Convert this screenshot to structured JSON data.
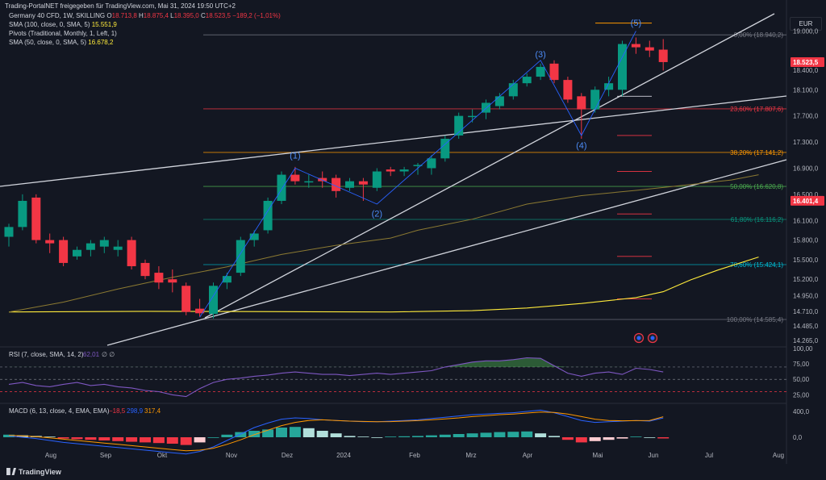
{
  "header": {
    "publisher_note": "Trading-PortalNET freigegeben für TradingView.com, Mai 31, 2024 19:50 UTC+2",
    "symbol": "Germany 40 CFD, 1W, SKILLING",
    "ohlc": {
      "o_label": "O",
      "o": "18.713,8",
      "h_label": "H",
      "h": "18.875,4",
      "l_label": "L",
      "l": "18.395,0",
      "c_label": "C",
      "c": "18.523,5",
      "chg": "−189,2 (−1,01%)"
    },
    "sma100": {
      "label": "SMA (100, close, 0, SMA, 5)",
      "value": "15.551,9"
    },
    "pivots": {
      "label": "Pivots (Traditional, Monthly, 1, Left, 1)"
    },
    "sma50": {
      "label": "SMA (50, close, 0, SMA, 5)",
      "value": "16.678,2"
    },
    "currency": "EUR"
  },
  "brand": "TradingView",
  "chart_data": [
    {
      "type": "candlestick",
      "title": "Germany 40 CFD, 1W, SKILLING",
      "price_axis": {
        "ticks": [
          19000,
          18400,
          18100,
          17700,
          17300,
          16900,
          16500,
          16100,
          15800,
          15500,
          15200,
          14950,
          14710,
          14485,
          14265
        ],
        "labels": [
          "19.000,0",
          "18.400,0",
          "18.100,0",
          "17.700,0",
          "17.300,0",
          "16.900,0",
          "16.500,0",
          "16.100,0",
          "15.800,0",
          "15.500,0",
          "15.200,0",
          "14.950,0",
          "14.710,0",
          "14.485,0",
          "14.265,0"
        ],
        "ylim": [
          14190,
          19350
        ]
      },
      "time_axis": [
        "Aug",
        "Sep",
        "Okt",
        "Nov",
        "Dez",
        "2024",
        "Feb",
        "Mrz",
        "Apr",
        "Mai",
        "Jun",
        "Jul",
        "Aug"
      ],
      "price_badges": [
        {
          "value": 18523.5,
          "label": "18.523,5",
          "color": "#f23645"
        },
        {
          "value": 16401.4,
          "label": "16.401,4",
          "color": "#f23645"
        }
      ],
      "candles": [
        {
          "o": 15850,
          "h": 16050,
          "l": 15700,
          "c": 16000
        },
        {
          "o": 16000,
          "h": 16500,
          "l": 15950,
          "c": 16400
        },
        {
          "o": 16450,
          "h": 16500,
          "l": 15750,
          "c": 15800
        },
        {
          "o": 15800,
          "h": 15900,
          "l": 15600,
          "c": 15750
        },
        {
          "o": 15800,
          "h": 15850,
          "l": 15400,
          "c": 15450
        },
        {
          "o": 15550,
          "h": 15700,
          "l": 15500,
          "c": 15650
        },
        {
          "o": 15650,
          "h": 15800,
          "l": 15550,
          "c": 15750
        },
        {
          "o": 15700,
          "h": 15850,
          "l": 15600,
          "c": 15800
        },
        {
          "o": 15650,
          "h": 15800,
          "l": 15550,
          "c": 15700
        },
        {
          "o": 15800,
          "h": 15850,
          "l": 15350,
          "c": 15400
        },
        {
          "o": 15450,
          "h": 15500,
          "l": 15200,
          "c": 15250
        },
        {
          "o": 15300,
          "h": 15400,
          "l": 15050,
          "c": 15150
        },
        {
          "o": 15200,
          "h": 15350,
          "l": 15000,
          "c": 15150
        },
        {
          "o": 15100,
          "h": 15150,
          "l": 14650,
          "c": 14700
        },
        {
          "o": 14750,
          "h": 14900,
          "l": 14630,
          "c": 14680
        },
        {
          "o": 14670,
          "h": 15150,
          "l": 14600,
          "c": 15100
        },
        {
          "o": 15150,
          "h": 15300,
          "l": 15050,
          "c": 15250
        },
        {
          "o": 15300,
          "h": 15850,
          "l": 15250,
          "c": 15800
        },
        {
          "o": 15800,
          "h": 15950,
          "l": 15700,
          "c": 15900
        },
        {
          "o": 15950,
          "h": 16450,
          "l": 15900,
          "c": 16400
        },
        {
          "o": 16400,
          "h": 16850,
          "l": 16350,
          "c": 16800
        },
        {
          "o": 16800,
          "h": 16920,
          "l": 16650,
          "c": 16700
        },
        {
          "o": 16700,
          "h": 16800,
          "l": 16600,
          "c": 16700
        },
        {
          "o": 16750,
          "h": 16850,
          "l": 16600,
          "c": 16700
        },
        {
          "o": 16750,
          "h": 16800,
          "l": 16450,
          "c": 16550
        },
        {
          "o": 16600,
          "h": 16750,
          "l": 16550,
          "c": 16700
        },
        {
          "o": 16700,
          "h": 16750,
          "l": 16400,
          "c": 16650
        },
        {
          "o": 16600,
          "h": 16900,
          "l": 16550,
          "c": 16850
        },
        {
          "o": 16880,
          "h": 16920,
          "l": 16780,
          "c": 16850
        },
        {
          "o": 16850,
          "h": 16920,
          "l": 16780,
          "c": 16880
        },
        {
          "o": 16950,
          "h": 16980,
          "l": 16800,
          "c": 16950
        },
        {
          "o": 16900,
          "h": 17100,
          "l": 16800,
          "c": 17050
        },
        {
          "o": 17050,
          "h": 17400,
          "l": 17000,
          "c": 17350
        },
        {
          "o": 17400,
          "h": 17750,
          "l": 17350,
          "c": 17700
        },
        {
          "o": 17700,
          "h": 17800,
          "l": 17600,
          "c": 17700
        },
        {
          "o": 17750,
          "h": 17950,
          "l": 17650,
          "c": 17900
        },
        {
          "o": 17850,
          "h": 18050,
          "l": 17800,
          "c": 18000
        },
        {
          "o": 18000,
          "h": 18250,
          "l": 17950,
          "c": 18200
        },
        {
          "o": 18200,
          "h": 18350,
          "l": 18150,
          "c": 18300
        },
        {
          "o": 18300,
          "h": 18500,
          "l": 18250,
          "c": 18450
        },
        {
          "o": 18500,
          "h": 18550,
          "l": 18200,
          "c": 18250
        },
        {
          "o": 18250,
          "h": 18300,
          "l": 17900,
          "c": 17950
        },
        {
          "o": 18000,
          "h": 18050,
          "l": 17350,
          "c": 17800
        },
        {
          "o": 17800,
          "h": 18150,
          "l": 17750,
          "c": 18100
        },
        {
          "o": 18100,
          "h": 18300,
          "l": 18000,
          "c": 18200
        },
        {
          "o": 18100,
          "h": 18850,
          "l": 18000,
          "c": 18800
        },
        {
          "o": 18800,
          "h": 18900,
          "l": 18650,
          "c": 18750
        },
        {
          "o": 18750,
          "h": 18850,
          "l": 18600,
          "c": 18700
        },
        {
          "o": 18713.8,
          "h": 18875.4,
          "l": 18395.0,
          "c": 18523.5
        }
      ],
      "sma100_curve": [
        [
          0,
          14700
        ],
        [
          10,
          14710
        ],
        [
          20,
          14705
        ],
        [
          28,
          14700
        ],
        [
          34,
          14720
        ],
        [
          38,
          14760
        ],
        [
          42,
          14830
        ],
        [
          46,
          14920
        ],
        [
          48,
          15010
        ],
        [
          49,
          15100
        ],
        [
          50,
          15190
        ],
        [
          52,
          15340
        ],
        [
          55,
          15540
        ]
      ],
      "sma50_curve": [
        [
          0,
          14700
        ],
        [
          4,
          14850
        ],
        [
          8,
          15050
        ],
        [
          12,
          15230
        ],
        [
          16,
          15390
        ],
        [
          20,
          15580
        ],
        [
          24,
          15720
        ],
        [
          28,
          15830
        ],
        [
          30,
          15950
        ],
        [
          34,
          16120
        ],
        [
          38,
          16350
        ],
        [
          42,
          16480
        ],
        [
          46,
          16560
        ],
        [
          50,
          16650
        ],
        [
          53,
          16720
        ],
        [
          55,
          16800
        ]
      ],
      "fibonacci": [
        {
          "label": "0,00% (18.940,2)",
          "value": 18940.2,
          "color": "#787b86"
        },
        {
          "label": "23,60% (17.807,6)",
          "value": 17807.6,
          "color": "#f23645"
        },
        {
          "label": "38,20% (17.141,2)",
          "value": 17141.2,
          "color": "#ff9800"
        },
        {
          "label": "50,00% (16.620,8)",
          "value": 16620.8,
          "color": "#4caf50"
        },
        {
          "label": "61,80% (16.116,2)",
          "value": 16116.2,
          "color": "#089981"
        },
        {
          "label": "78,60% (15.424,1)",
          "value": 15424.1,
          "color": "#00bcd4"
        },
        {
          "label": "100,00% (14.585,4)",
          "value": 14585.4,
          "color": "#787b86"
        }
      ],
      "elliott_labels": [
        {
          "label": "(1)",
          "bar": 21,
          "value": 17050,
          "color": "#2962ff"
        },
        {
          "label": "(2)",
          "bar": 27,
          "value": 16160,
          "color": "#2962ff"
        },
        {
          "label": "(3)",
          "bar": 39,
          "value": 18600,
          "color": "#2962ff"
        },
        {
          "label": "(4)",
          "bar": 42,
          "value": 17200,
          "color": "#2962ff"
        },
        {
          "label": "(5)",
          "bar": 46,
          "value": 19080,
          "color": "#2962ff"
        }
      ]
    },
    {
      "type": "line",
      "title": "RSI (7, close, SMA, 14, 2)",
      "value_label": "62,01",
      "extra": "∅ ∅",
      "yticks": [
        "100,00",
        "75,00",
        "50,00",
        "25,00"
      ],
      "levels": [
        70,
        50,
        30
      ],
      "ylim": [
        15,
        100
      ],
      "values": [
        42,
        45,
        40,
        38,
        42,
        45,
        40,
        42,
        38,
        36,
        32,
        30,
        25,
        22,
        35,
        45,
        50,
        52,
        55,
        57,
        60,
        62,
        60,
        58,
        58,
        56,
        58,
        60,
        58,
        60,
        62,
        64,
        70,
        74,
        78,
        80,
        80,
        82,
        85,
        84,
        72,
        60,
        55,
        60,
        62,
        58,
        68,
        66,
        62
      ]
    },
    {
      "type": "bar+line",
      "title": "MACD (6, 13, close, 4, EMA, EMA)",
      "values_shown": [
        "−18,5",
        "298,9",
        "317,4"
      ],
      "yticks": [
        "400,0",
        "0,0"
      ],
      "ylim": [
        -350,
        500
      ],
      "histogram": [
        40,
        30,
        20,
        10,
        -20,
        -30,
        -40,
        -50,
        -60,
        -70,
        -80,
        -90,
        -100,
        -120,
        -80,
        0,
        40,
        80,
        100,
        120,
        150,
        160,
        140,
        100,
        60,
        20,
        10,
        0,
        10,
        15,
        20,
        30,
        40,
        50,
        60,
        70,
        80,
        85,
        90,
        60,
        20,
        -40,
        -80,
        -60,
        -40,
        -20,
        10,
        0,
        -18.5
      ],
      "macd_line": [
        20,
        0,
        -20,
        -50,
        -80,
        -100,
        -120,
        -140,
        -160,
        -180,
        -200,
        -220,
        -240,
        -260,
        -220,
        -150,
        -50,
        50,
        150,
        220,
        280,
        300,
        290,
        270,
        260,
        250,
        240,
        240,
        250,
        260,
        270,
        290,
        310,
        330,
        350,
        360,
        370,
        380,
        400,
        420,
        380,
        320,
        260,
        230,
        240,
        250,
        260,
        250,
        298.9
      ],
      "signal_line": [
        30,
        20,
        10,
        -10,
        -30,
        -50,
        -70,
        -90,
        -110,
        -130,
        -150,
        -170,
        -190,
        -210,
        -200,
        -170,
        -110,
        -40,
        40,
        110,
        180,
        230,
        260,
        270,
        260,
        250,
        245,
        240,
        243,
        250,
        258,
        270,
        285,
        300,
        320,
        335,
        350,
        360,
        375,
        390,
        385,
        360,
        320,
        280,
        260,
        255,
        258,
        260,
        317.4
      ]
    }
  ]
}
